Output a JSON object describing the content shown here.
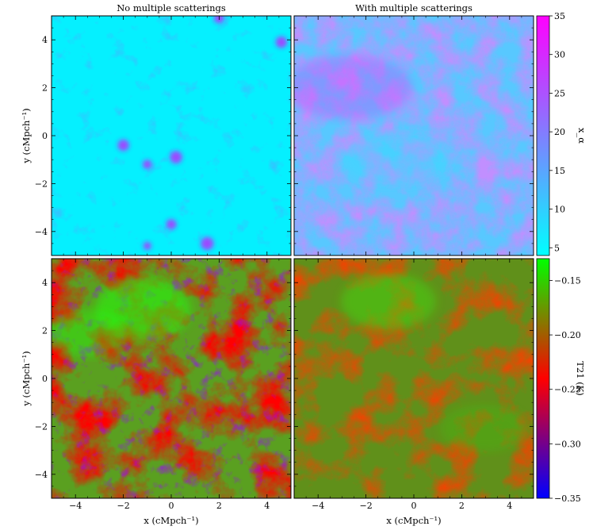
{
  "figure": {
    "panel_titles": [
      "No multiple scatterings",
      "With multiple scatterings"
    ],
    "xlabel": "x (cMpch⁻¹)",
    "ylabel": "y (cMpch⁻¹)"
  },
  "chart_data": [
    {
      "type": "heatmap",
      "title": "No multiple scatterings",
      "quantity": "x_alpha",
      "xlim": [
        -5,
        5
      ],
      "ylim": [
        -5,
        5
      ],
      "xticks": [
        -4,
        -2,
        0,
        2,
        4
      ],
      "yticks": [
        -4,
        -2,
        0,
        2,
        4
      ],
      "colormap": "cool",
      "description_values": {
        "background_level": 5,
        "peak_level": 30
      },
      "hotspots": [
        {
          "x": -2.0,
          "y": -0.4,
          "level": 22
        },
        {
          "x": 0.2,
          "y": -0.9,
          "level": 24
        },
        {
          "x": -1.0,
          "y": -1.2,
          "level": 18
        },
        {
          "x": 0.0,
          "y": -3.7,
          "level": 20
        },
        {
          "x": 1.5,
          "y": -4.5,
          "level": 25
        },
        {
          "x": 4.6,
          "y": 3.9,
          "level": 22
        },
        {
          "x": 2.0,
          "y": 4.9,
          "level": 20
        },
        {
          "x": -1.0,
          "y": -4.6,
          "level": 16
        }
      ]
    },
    {
      "type": "heatmap",
      "title": "With multiple scatterings",
      "quantity": "x_alpha",
      "xlim": [
        -5,
        5
      ],
      "ylim": [
        -5,
        5
      ],
      "xticks": [
        -4,
        -2,
        0,
        2,
        4
      ],
      "yticks": [
        -4,
        -2,
        0,
        2,
        4
      ],
      "colormap": "cool",
      "description_values": {
        "background_level": 12,
        "peak_level": 28
      }
    },
    {
      "type": "heatmap",
      "title": "",
      "quantity": "T21",
      "xlim": [
        -5,
        5
      ],
      "ylim": [
        -5,
        5
      ],
      "xticks": [
        -4,
        -2,
        0,
        2,
        4
      ],
      "yticks": [
        -4,
        -2,
        0,
        2,
        4
      ],
      "colormap": "brg",
      "description_values": {
        "min": -0.35,
        "max": -0.13
      }
    },
    {
      "type": "heatmap",
      "title": "",
      "quantity": "T21",
      "xlim": [
        -5,
        5
      ],
      "ylim": [
        -5,
        5
      ],
      "xticks": [
        -4,
        -2,
        0,
        2,
        4
      ],
      "yticks": [
        -4,
        -2,
        0,
        2,
        4
      ],
      "colormap": "brg",
      "description_values": {
        "min": -0.27,
        "max": -0.15
      }
    }
  ],
  "colorbars": [
    {
      "label": "x_α",
      "range": [
        4,
        35
      ],
      "ticks": [
        "5",
        "10",
        "15",
        "20",
        "25",
        "30",
        "35"
      ],
      "tick_values": [
        5,
        10,
        15,
        20,
        25,
        30,
        35
      ],
      "colors": [
        "#00ffff",
        "#ff00ff"
      ]
    },
    {
      "label": "T21 (K)",
      "range": [
        -0.35,
        -0.13
      ],
      "ticks": [
        "−0.15",
        "−0.20",
        "−0.25",
        "−0.30",
        "−0.35"
      ],
      "tick_values": [
        -0.15,
        -0.2,
        -0.25,
        -0.3,
        -0.35
      ],
      "colors": [
        "#0000ff",
        "#ff0000",
        "#00ff00"
      ]
    }
  ],
  "axis_tick_labels": [
    "−4",
    "−2",
    "0",
    "2",
    "4"
  ]
}
